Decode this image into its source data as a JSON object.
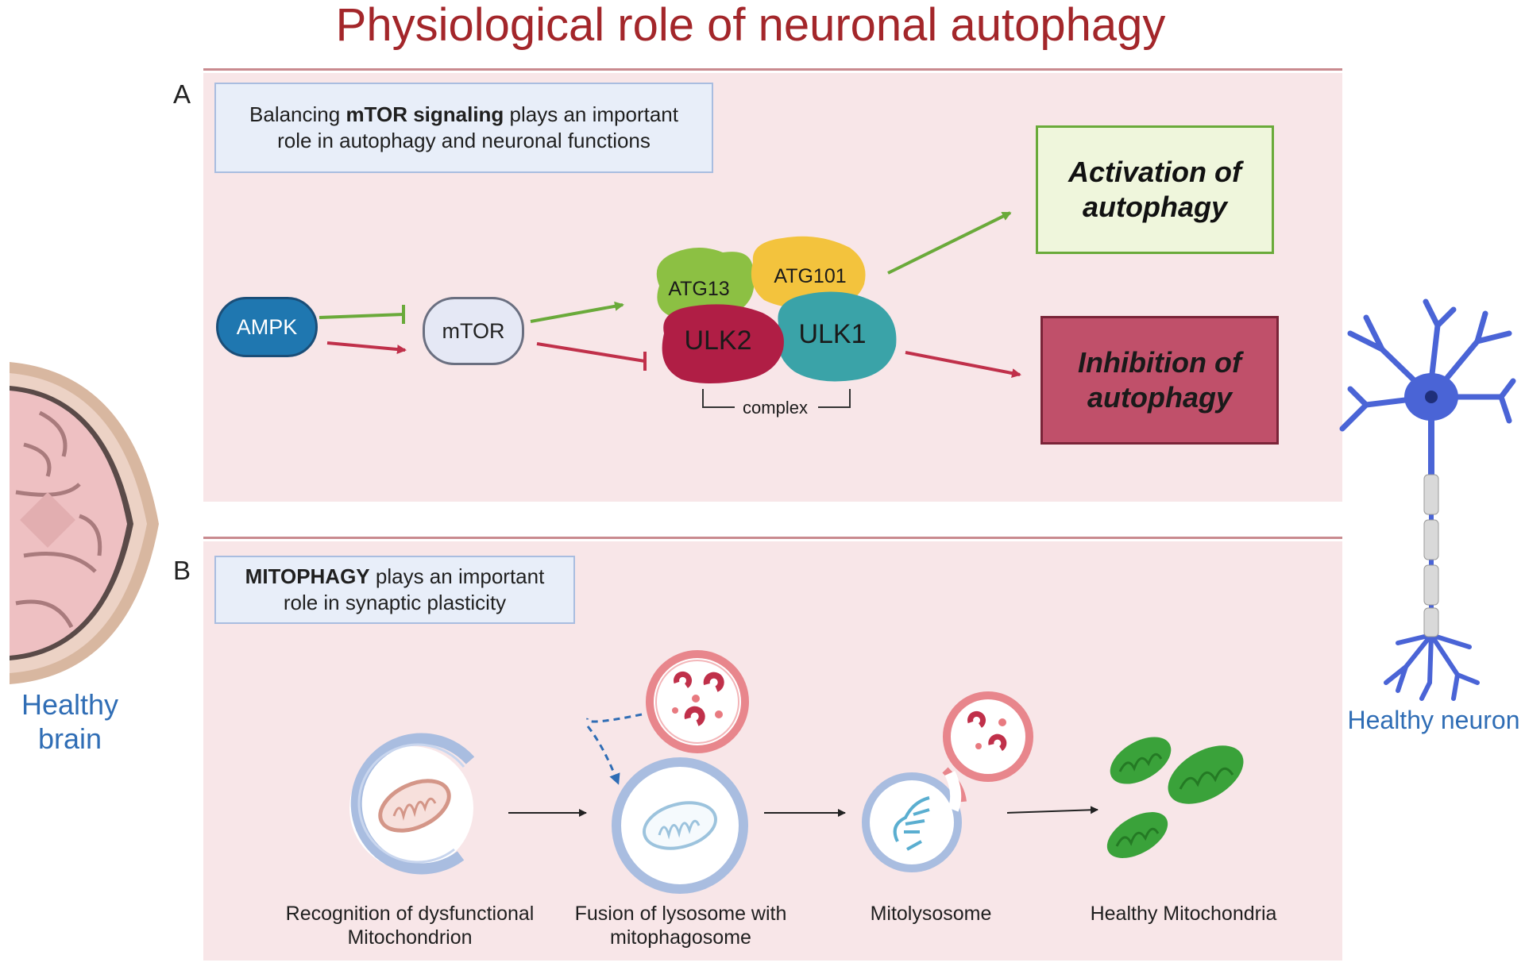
{
  "title": "Physiological role of neuronal autophagy",
  "panel_a": {
    "label": "A",
    "note_bold": "mTOR  signaling",
    "note_pre": "Balancing ",
    "note_post": " plays an important role in autophagy and neuronal functions",
    "ampk": "AMPK",
    "mtor": "mTOR",
    "proteins": [
      "ATG13",
      "ATG101",
      "ULK2",
      "ULK1"
    ],
    "complex_label": "complex",
    "activation": "Activation of autophagy",
    "inhibition": "Inhibition of autophagy"
  },
  "panel_b": {
    "label": "B",
    "note_bold": "MITOPHAGY",
    "note_post": " plays an important role in synaptic plasticity",
    "steps": [
      "Recognition of dysfunctional Mitochondrion",
      "Fusion of lysosome with mitophagosome",
      "Mitolysosome",
      "Healthy Mitochondria"
    ]
  },
  "side": {
    "brain": "Healthy brain",
    "neuron": "Healthy neuron"
  },
  "colors": {
    "title": "#a3262a",
    "panel_bg": "#f8e6e8",
    "activation_green": "#6aaa3a",
    "inhibition_red": "#c0304a",
    "ampk_blue": "#1f77b0",
    "neuron_blue": "#4a64d6"
  }
}
